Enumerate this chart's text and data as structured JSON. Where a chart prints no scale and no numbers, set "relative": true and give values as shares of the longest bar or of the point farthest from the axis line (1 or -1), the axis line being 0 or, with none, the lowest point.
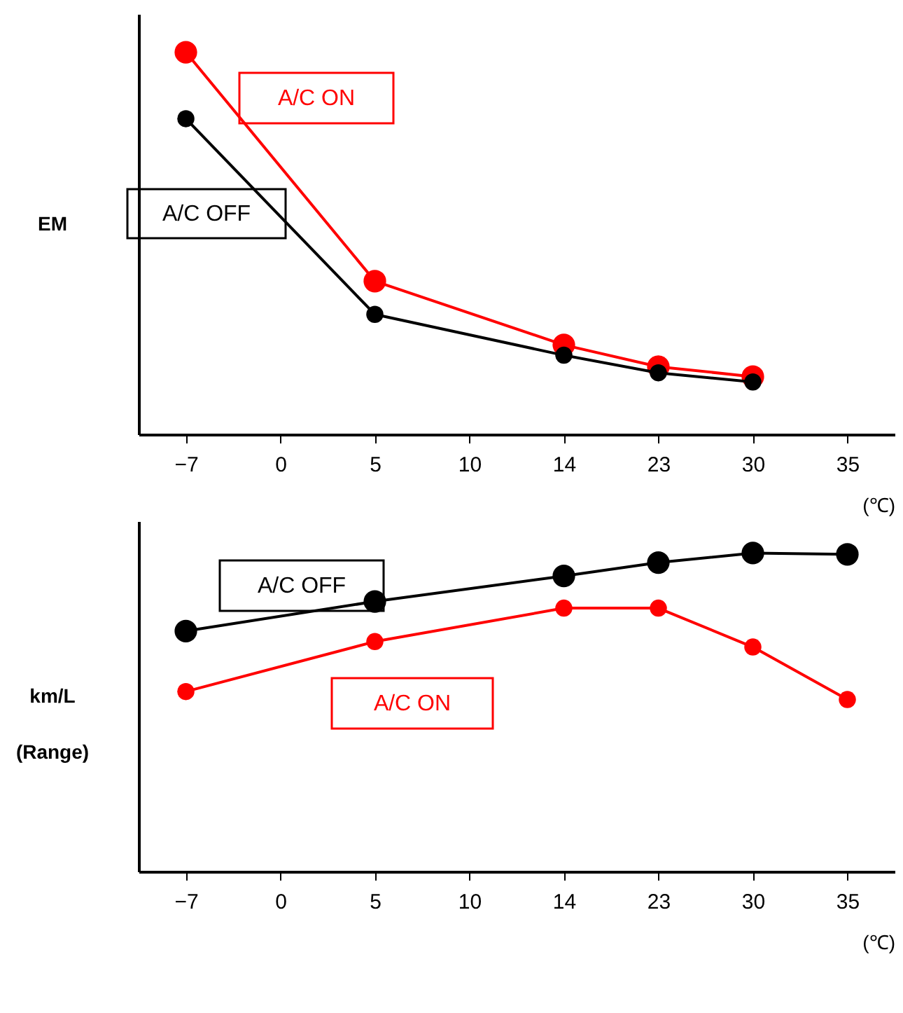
{
  "chart_data": [
    {
      "type": "line",
      "relative": true,
      "ylabel": "EM",
      "xlabel": "(℃)",
      "categories": [
        "−7",
        "0",
        "5",
        "10",
        "14",
        "23",
        "30",
        "35"
      ],
      "legend": false,
      "marker": "circle",
      "grid": false,
      "tick_labels": "x",
      "series": [
        {
          "name": "A/C ON",
          "color": "#ff0000",
          "values": [
            1,
            null,
            0.401,
            null,
            0.234,
            0.177,
            0.151,
            null
          ]
        },
        {
          "name": "A/C OFF",
          "color": "#000000",
          "values": [
            0.826,
            null,
            0.314,
            null,
            0.207,
            0.161,
            0.137,
            null
          ]
        }
      ]
    },
    {
      "type": "line",
      "relative": true,
      "ylabel": "km/L\n(Range)",
      "xlabel": "(℃)",
      "categories": [
        "−7",
        "0",
        "5",
        "10",
        "14",
        "23",
        "30",
        "35"
      ],
      "legend": false,
      "marker": "circle",
      "grid": false,
      "tick_labels": "x",
      "series": [
        {
          "name": "A/C OFF",
          "color": "#000000",
          "values": [
            0.755,
            null,
            0.848,
            null,
            0.928,
            0.97,
            1,
            0.996
          ]
        },
        {
          "name": "A/C ON",
          "color": "#ff0000",
          "values": [
            0.565,
            null,
            0.722,
            null,
            0.827,
            0.827,
            0.705,
            0.54
          ]
        }
      ]
    }
  ]
}
